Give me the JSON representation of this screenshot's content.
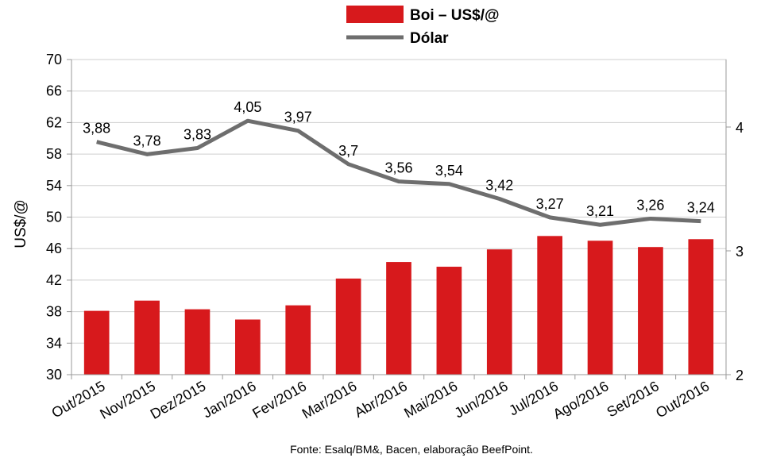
{
  "chart_data": {
    "type": "bar",
    "categories": [
      "Out/2015",
      "Nov/2015",
      "Dez/2015",
      "Jan/2016",
      "Fev/2016",
      "Mar/2016",
      "Abr/2016",
      "Mai/2016",
      "Jun/2016",
      "Jul/2016",
      "Ago/2016",
      "Set/2016",
      "Out/2016"
    ],
    "series": [
      {
        "name": "Boi – US$/@",
        "kind": "bar",
        "axis": "left",
        "color": "#d7191c",
        "values": [
          38.1,
          39.4,
          38.3,
          37.0,
          38.8,
          42.2,
          44.3,
          43.7,
          45.9,
          47.6,
          47.0,
          46.2,
          47.2
        ]
      },
      {
        "name": "Dólar",
        "kind": "line",
        "axis": "right",
        "color": "#6e6e6e",
        "values": [
          3.88,
          3.78,
          3.83,
          4.05,
          3.97,
          3.7,
          3.56,
          3.54,
          3.42,
          3.27,
          3.21,
          3.26,
          3.24
        ],
        "labels": [
          "3,88",
          "3,78",
          "3,83",
          "4,05",
          "3,97",
          "3,7",
          "3,56",
          "3,54",
          "3,42",
          "3,27",
          "3,21",
          "3,26",
          "3,24"
        ]
      }
    ],
    "ylabel": "US$/@",
    "ylim": [
      30,
      70
    ],
    "yticks": [
      "30",
      "34",
      "38",
      "42",
      "46",
      "50",
      "54",
      "58",
      "62",
      "66",
      "70"
    ],
    "y2lim": [
      2,
      4.545
    ],
    "y2ticks": [
      "2",
      "3",
      "4"
    ],
    "grid": "horizontal",
    "legend_position": "top-center",
    "source": "Fonte:  Esalq/BM&,  Bacen,  elaboração  BeefPoint."
  }
}
